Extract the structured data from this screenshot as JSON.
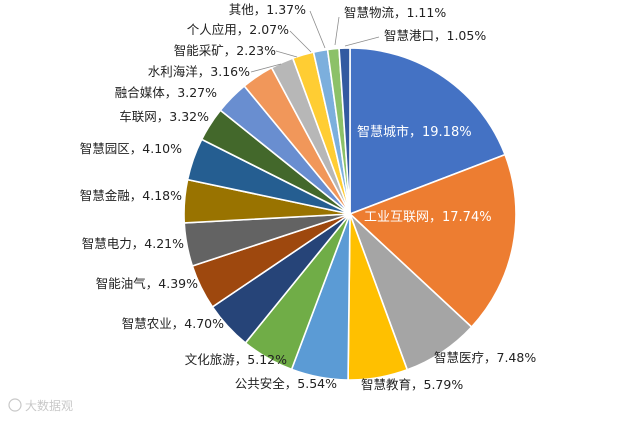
{
  "chart_data": {
    "type": "pie",
    "title": "",
    "slices": [
      {
        "label": "智慧城市",
        "display": "智慧城市，19.18%",
        "value": 19.18,
        "color": "#4472C4"
      },
      {
        "label": "工业互联网",
        "display": "工业互联网，17.74%",
        "value": 17.74,
        "color": "#ED7D31"
      },
      {
        "label": "智慧医疗",
        "display": "智慧医疗，7.48%",
        "value": 7.48,
        "color": "#A5A5A5"
      },
      {
        "label": "智慧教育",
        "display": "智慧教育，5.79%",
        "value": 5.79,
        "color": "#FFC000"
      },
      {
        "label": "公共安全",
        "display": "公共安全，5.54%",
        "value": 5.54,
        "color": "#5B9BD5"
      },
      {
        "label": "文化旅游",
        "display": "文化旅游，5.12%",
        "value": 5.12,
        "color": "#70AD47"
      },
      {
        "label": "智慧农业",
        "display": "智慧农业，4.70%",
        "value": 4.7,
        "color": "#264478"
      },
      {
        "label": "智能油气",
        "display": "智能油气，4.39%",
        "value": 4.39,
        "color": "#9E480E"
      },
      {
        "label": "智慧电力",
        "display": "智慧电力，4.21%",
        "value": 4.21,
        "color": "#636363"
      },
      {
        "label": "智慧金融",
        "display": "智慧金融，4.18%",
        "value": 4.18,
        "color": "#997300"
      },
      {
        "label": "智慧园区",
        "display": "智慧园区，4.10%",
        "value": 4.1,
        "color": "#255E91"
      },
      {
        "label": "车联网",
        "display": "车联网，3.32%",
        "value": 3.32,
        "color": "#43682B"
      },
      {
        "label": "融合媒体",
        "display": "融合媒体，3.27%",
        "value": 3.27,
        "color": "#698ED0"
      },
      {
        "label": "水利海洋",
        "display": "水利海洋，3.16%",
        "value": 3.16,
        "color": "#F1975A"
      },
      {
        "label": "智能采矿",
        "display": "智能采矿，2.23%",
        "value": 2.23,
        "color": "#B7B7B7"
      },
      {
        "label": "个人应用",
        "display": "个人应用，2.07%",
        "value": 2.07,
        "color": "#FFCD33"
      },
      {
        "label": "其他",
        "display": "其他，1.37%",
        "value": 1.37,
        "color": "#7CAFDD"
      },
      {
        "label": "智慧物流",
        "display": "智慧物流，1.11%",
        "value": 1.11,
        "color": "#8CC168"
      },
      {
        "label": "智慧港口",
        "display": "智慧港口，1.05%",
        "value": 1.05,
        "color": "#335AA1"
      }
    ],
    "legend": "none",
    "start_angle": "12 o'clock, clockwise"
  },
  "watermark": "大数据观"
}
